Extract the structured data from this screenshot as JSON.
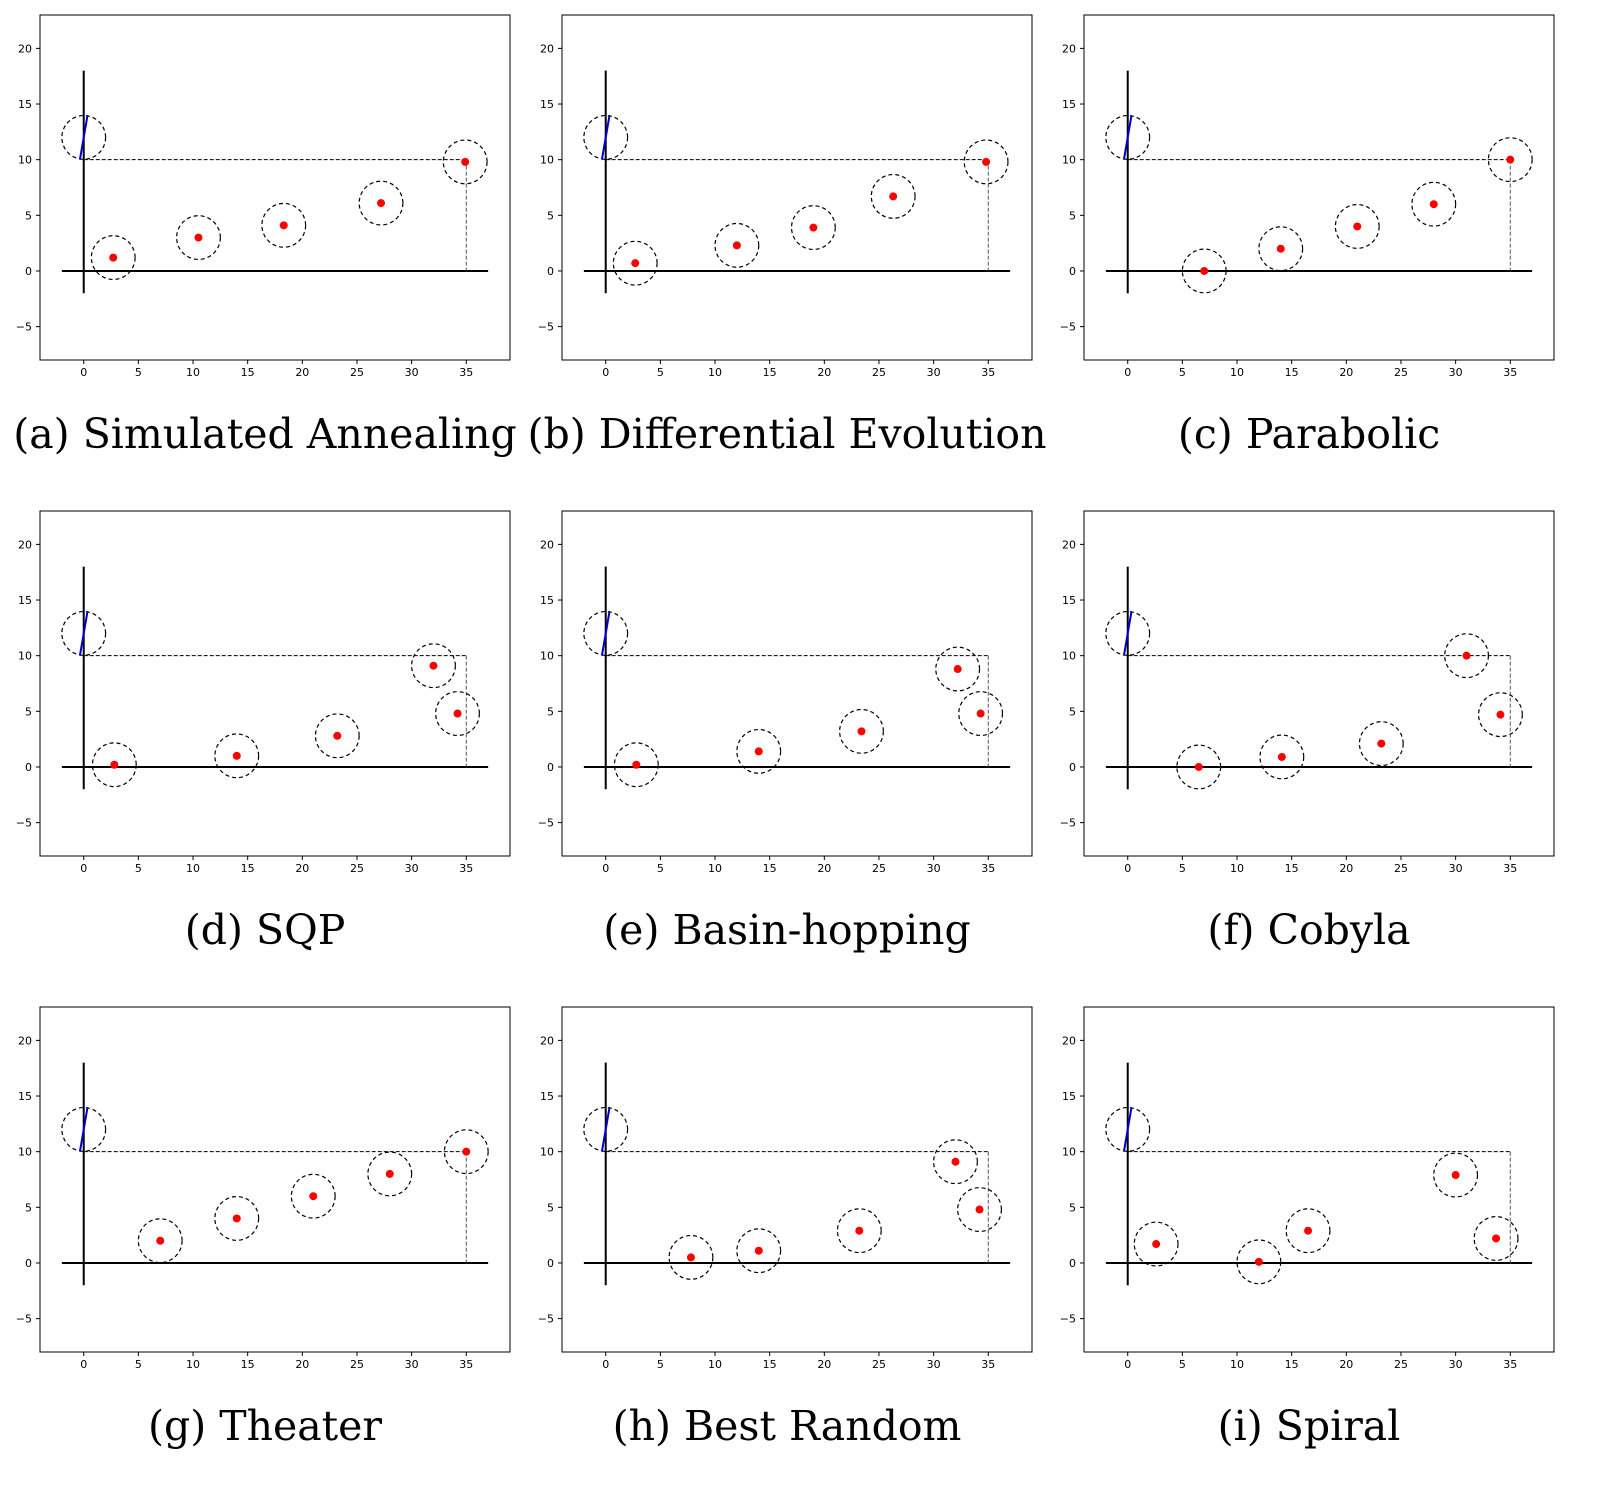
{
  "figure": {
    "background": "#ffffff"
  },
  "style": {
    "point_color": "#ff0000",
    "blue_line_color": "#0000cc",
    "axis_color": "#000000"
  },
  "chart_data": [
    {
      "type": "scatter",
      "caption": "(a) Simulated Annealing",
      "xlim": [
        -4,
        39
      ],
      "ylim": [
        -8,
        23
      ],
      "xticks": [
        0,
        5,
        10,
        15,
        20,
        25,
        30,
        35
      ],
      "yticks": [
        -5,
        0,
        5,
        10,
        15,
        20
      ],
      "points": [
        [
          2.7,
          1.2
        ],
        [
          10.5,
          3.0
        ],
        [
          18.3,
          4.1
        ],
        [
          27.2,
          6.1
        ],
        [
          34.9,
          9.8
        ]
      ],
      "radius": 2,
      "reference_circle": [
        0,
        12
      ],
      "corner": [
        35,
        10
      ]
    },
    {
      "type": "scatter",
      "caption": "(b) Differential Evolution",
      "xlim": [
        -4,
        39
      ],
      "ylim": [
        -8,
        23
      ],
      "xticks": [
        0,
        5,
        10,
        15,
        20,
        25,
        30,
        35
      ],
      "yticks": [
        -5,
        0,
        5,
        10,
        15,
        20
      ],
      "points": [
        [
          2.7,
          0.7
        ],
        [
          12.0,
          2.3
        ],
        [
          19.0,
          3.9
        ],
        [
          26.3,
          6.7
        ],
        [
          34.8,
          9.8
        ]
      ],
      "radius": 2,
      "reference_circle": [
        0,
        12
      ],
      "corner": [
        35,
        10
      ]
    },
    {
      "type": "scatter",
      "caption": "(c) Parabolic",
      "xlim": [
        -4,
        39
      ],
      "ylim": [
        -8,
        23
      ],
      "xticks": [
        0,
        5,
        10,
        15,
        20,
        25,
        30,
        35
      ],
      "yticks": [
        -5,
        0,
        5,
        10,
        15,
        20
      ],
      "points": [
        [
          7.0,
          0.0
        ],
        [
          14.0,
          2.0
        ],
        [
          21.0,
          4.0
        ],
        [
          28.0,
          6.0
        ],
        [
          35.0,
          10.0
        ]
      ],
      "radius": 2,
      "reference_circle": [
        0,
        12
      ],
      "corner": [
        35,
        10
      ]
    },
    {
      "type": "scatter",
      "caption": "(d) SQP",
      "xlim": [
        -4,
        39
      ],
      "ylim": [
        -8,
        23
      ],
      "xticks": [
        0,
        5,
        10,
        15,
        20,
        25,
        30,
        35
      ],
      "yticks": [
        -5,
        0,
        5,
        10,
        15,
        20
      ],
      "points": [
        [
          2.8,
          0.2
        ],
        [
          14.0,
          1.0
        ],
        [
          23.2,
          2.8
        ],
        [
          32.0,
          9.1
        ],
        [
          34.2,
          4.8
        ]
      ],
      "radius": 2,
      "reference_circle": [
        0,
        12
      ],
      "corner": [
        35,
        10
      ]
    },
    {
      "type": "scatter",
      "caption": "(e) Basin-hopping",
      "xlim": [
        -4,
        39
      ],
      "ylim": [
        -8,
        23
      ],
      "xticks": [
        0,
        5,
        10,
        15,
        20,
        25,
        30,
        35
      ],
      "yticks": [
        -5,
        0,
        5,
        10,
        15,
        20
      ],
      "points": [
        [
          2.8,
          0.2
        ],
        [
          14.0,
          1.4
        ],
        [
          23.4,
          3.2
        ],
        [
          32.2,
          8.8
        ],
        [
          34.3,
          4.8
        ]
      ],
      "radius": 2,
      "reference_circle": [
        0,
        12
      ],
      "corner": [
        35,
        10
      ]
    },
    {
      "type": "scatter",
      "caption": "(f) Cobyla",
      "xlim": [
        -4,
        39
      ],
      "ylim": [
        -8,
        23
      ],
      "xticks": [
        0,
        5,
        10,
        15,
        20,
        25,
        30,
        35
      ],
      "yticks": [
        -5,
        0,
        5,
        10,
        15,
        20
      ],
      "points": [
        [
          6.5,
          0.0
        ],
        [
          14.1,
          0.9
        ],
        [
          23.2,
          2.1
        ],
        [
          31.0,
          10.0
        ],
        [
          34.1,
          4.7
        ]
      ],
      "radius": 2,
      "reference_circle": [
        0,
        12
      ],
      "corner": [
        35,
        10
      ]
    },
    {
      "type": "scatter",
      "caption": "(g) Theater",
      "xlim": [
        -4,
        39
      ],
      "ylim": [
        -8,
        23
      ],
      "xticks": [
        0,
        5,
        10,
        15,
        20,
        25,
        30,
        35
      ],
      "yticks": [
        -5,
        0,
        5,
        10,
        15,
        20
      ],
      "points": [
        [
          7.0,
          2.0
        ],
        [
          14.0,
          4.0
        ],
        [
          21.0,
          6.0
        ],
        [
          28.0,
          8.0
        ],
        [
          35.0,
          10.0
        ]
      ],
      "radius": 2,
      "reference_circle": [
        0,
        12
      ],
      "corner": [
        35,
        10
      ]
    },
    {
      "type": "scatter",
      "caption": "(h) Best Random",
      "xlim": [
        -4,
        39
      ],
      "ylim": [
        -8,
        23
      ],
      "xticks": [
        0,
        5,
        10,
        15,
        20,
        25,
        30,
        35
      ],
      "yticks": [
        -5,
        0,
        5,
        10,
        15,
        20
      ],
      "points": [
        [
          7.8,
          0.5
        ],
        [
          14.0,
          1.1
        ],
        [
          23.2,
          2.9
        ],
        [
          32.0,
          9.1
        ],
        [
          34.2,
          4.8
        ]
      ],
      "radius": 2,
      "reference_circle": [
        0,
        12
      ],
      "corner": [
        35,
        10
      ]
    },
    {
      "type": "scatter",
      "caption": "(i) Spiral",
      "xlim": [
        -4,
        39
      ],
      "ylim": [
        -8,
        23
      ],
      "xticks": [
        0,
        5,
        10,
        15,
        20,
        25,
        30,
        35
      ],
      "yticks": [
        -5,
        0,
        5,
        10,
        15,
        20
      ],
      "points": [
        [
          2.6,
          1.7
        ],
        [
          12.0,
          0.1
        ],
        [
          16.5,
          2.9
        ],
        [
          30.0,
          7.9
        ],
        [
          33.7,
          2.2
        ]
      ],
      "radius": 2,
      "reference_circle": [
        0,
        12
      ],
      "corner": [
        35,
        10
      ]
    }
  ]
}
